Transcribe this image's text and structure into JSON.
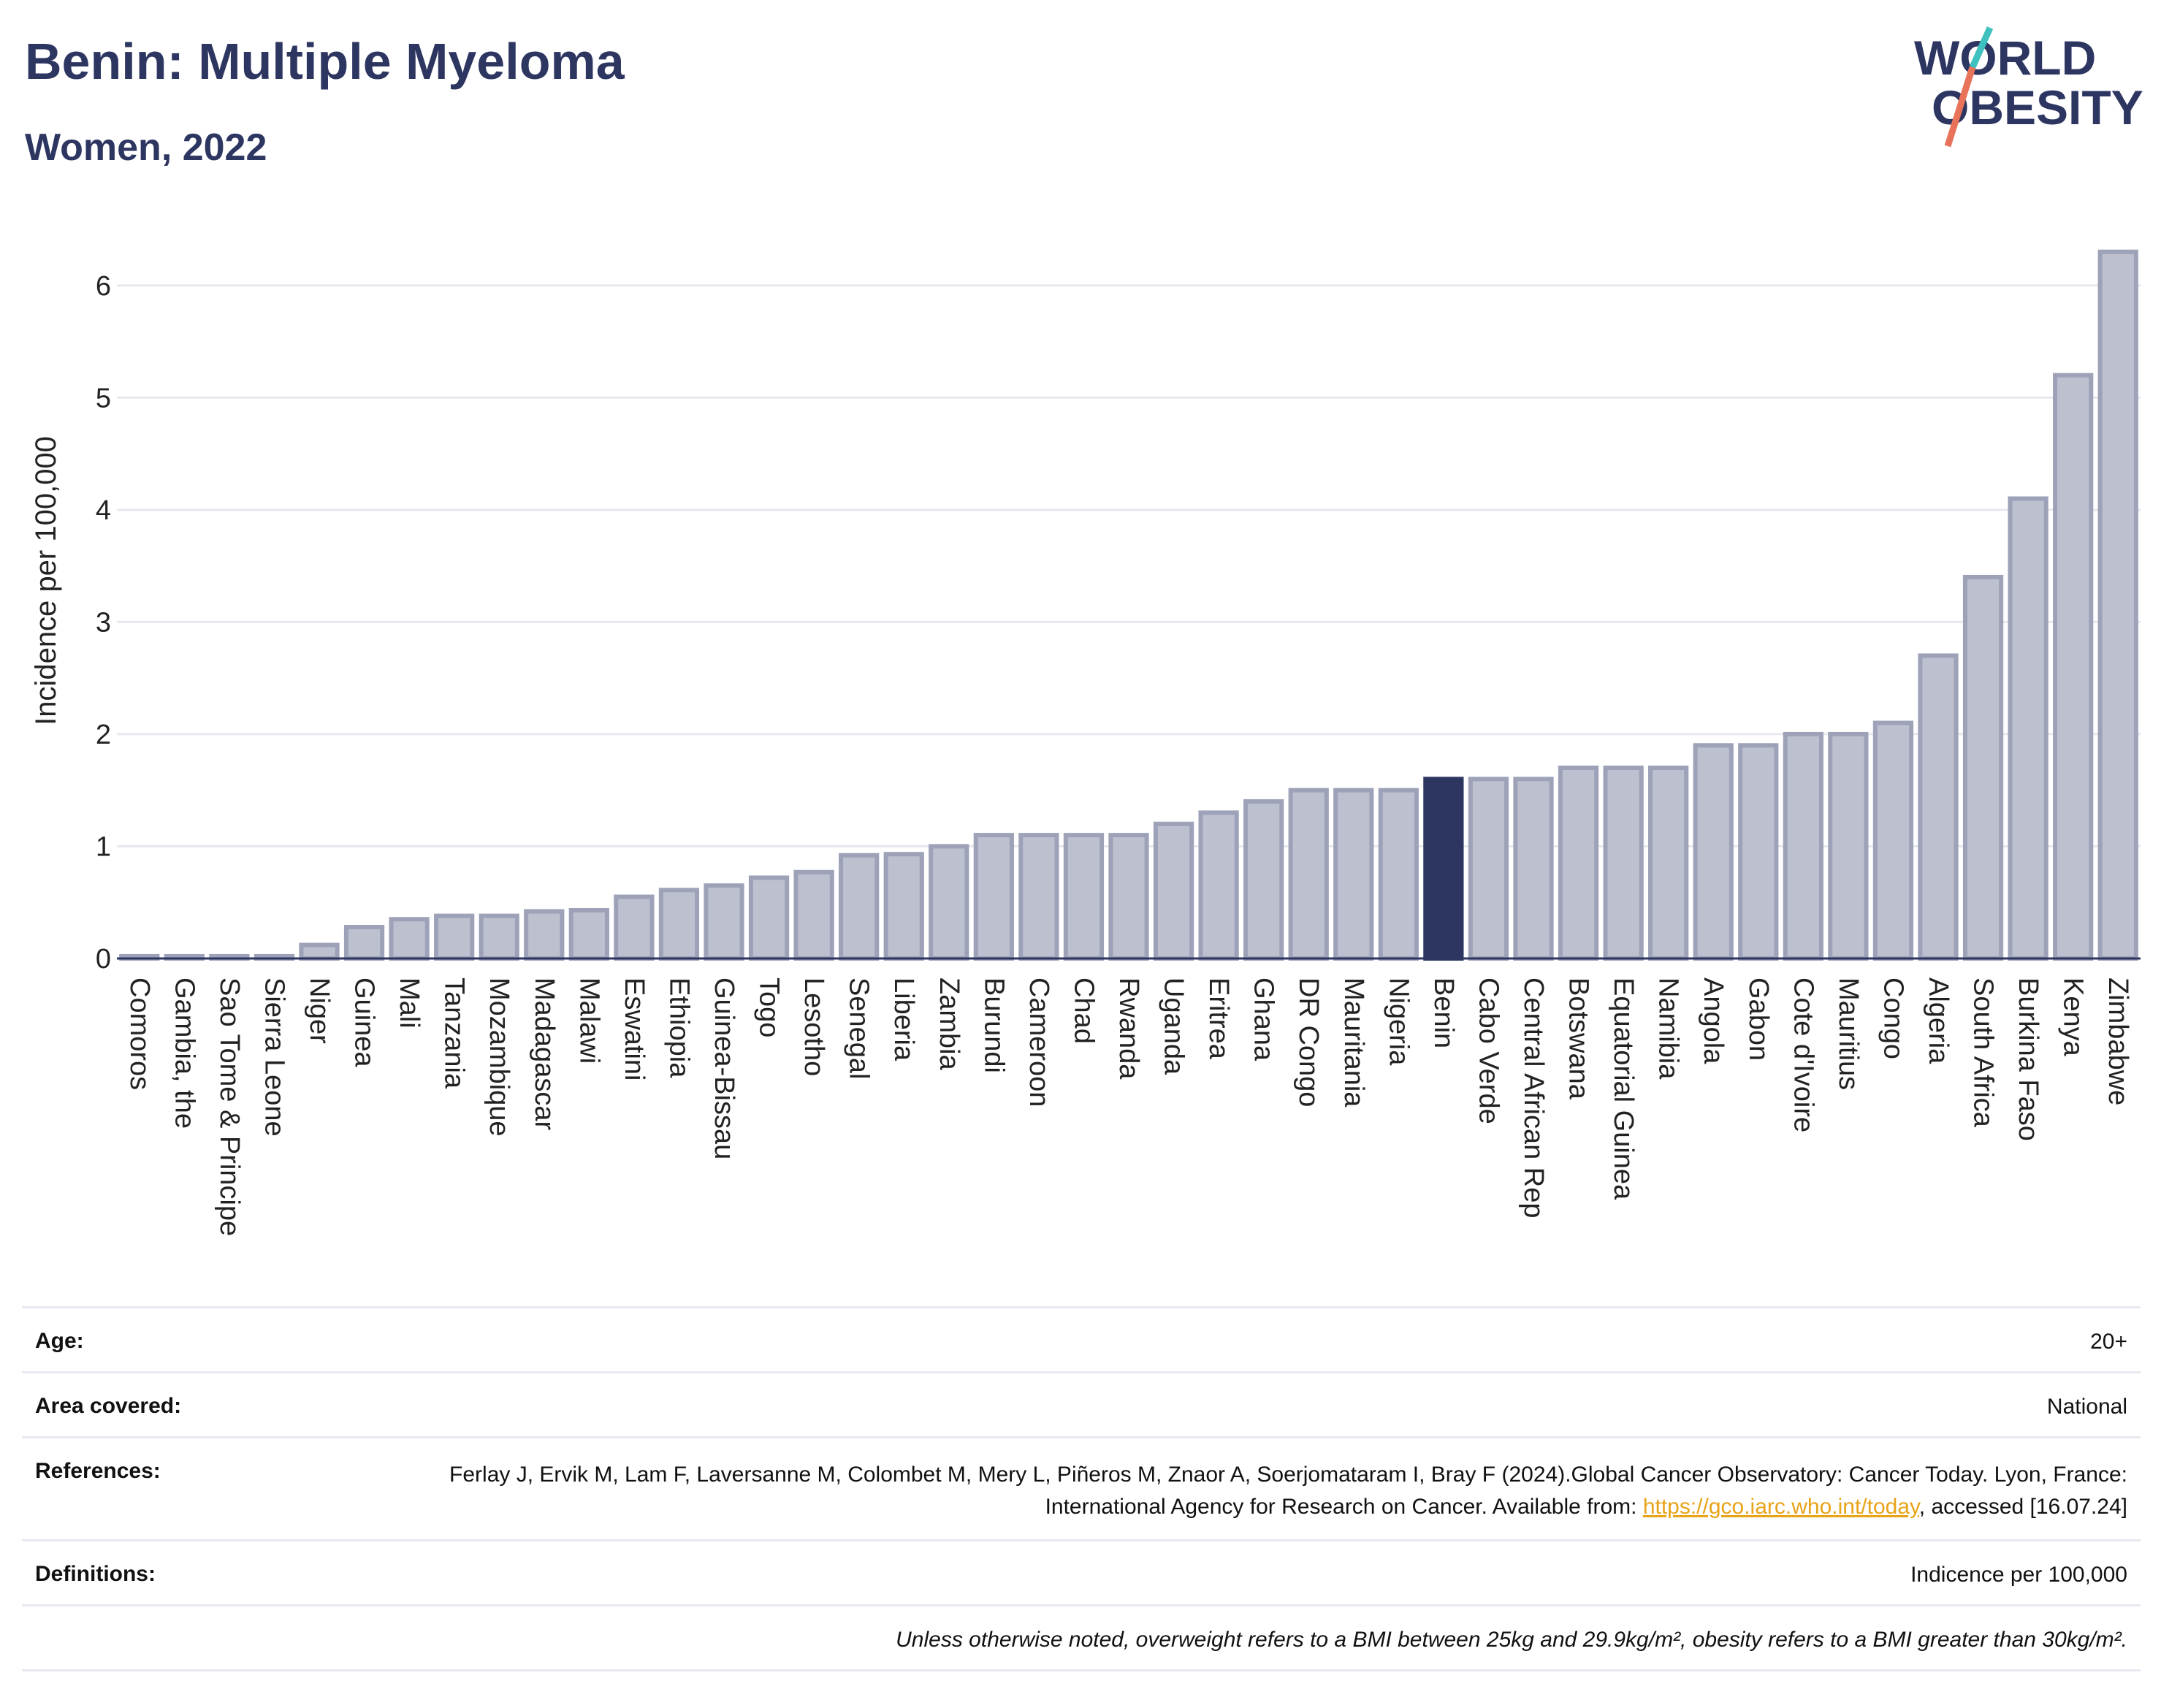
{
  "header": {
    "title": "Benin: Multiple Myeloma",
    "subtitle": "Women, 2022"
  },
  "logo": {
    "line1": "WORLD",
    "line2": "OBESITY",
    "colors": {
      "text": "#2d3561",
      "slash_teal": "#3fc1c0",
      "slash_coral": "#e8735a"
    }
  },
  "colors": {
    "bar": "#bcc0cf",
    "bar_border": "#9da2b8",
    "highlight": "#2d3561",
    "axis_text": "#222222",
    "grid": "#e6e8ee"
  },
  "chart_data": {
    "type": "bar",
    "ylabel": "Incidence per 100,000",
    "xlabel": "",
    "ylim": [
      0,
      6.5
    ],
    "yticks": [
      0,
      1,
      2,
      3,
      4,
      5,
      6
    ],
    "grid": true,
    "highlight": "Benin",
    "categories": [
      "Comoros",
      "Gambia, the",
      "Sao Tome & Principe",
      "Sierra Leone",
      "Niger",
      "Guinea",
      "Mali",
      "Tanzania",
      "Mozambique",
      "Madagascar",
      "Malawi",
      "Eswatini",
      "Ethiopia",
      "Guinea-Bissau",
      "Togo",
      "Lesotho",
      "Senegal",
      "Liberia",
      "Zambia",
      "Burundi",
      "Cameroon",
      "Chad",
      "Rwanda",
      "Uganda",
      "Eritrea",
      "Ghana",
      "DR Congo",
      "Mauritania",
      "Nigeria",
      "Benin",
      "Cabo Verde",
      "Central African Rep",
      "Botswana",
      "Equatorial Guinea",
      "Namibia",
      "Angola",
      "Gabon",
      "Cote d'Ivoire",
      "Mauritius",
      "Congo",
      "Algeria",
      "South Africa",
      "Burkina Faso",
      "Kenya",
      "Zimbabwe"
    ],
    "values": [
      0.02,
      0.02,
      0.02,
      0.02,
      0.12,
      0.28,
      0.35,
      0.38,
      0.38,
      0.42,
      0.43,
      0.55,
      0.61,
      0.65,
      0.72,
      0.77,
      0.92,
      0.93,
      1.0,
      1.1,
      1.1,
      1.1,
      1.1,
      1.2,
      1.3,
      1.4,
      1.5,
      1.5,
      1.5,
      1.6,
      1.6,
      1.6,
      1.7,
      1.7,
      1.7,
      1.9,
      1.9,
      2.0,
      2.0,
      2.1,
      2.7,
      3.4,
      4.1,
      5.2,
      6.3
    ]
  },
  "meta": {
    "age_label": "Age:",
    "age_value": "20+",
    "area_label": "Area covered:",
    "area_value": "National",
    "references_label": "References:",
    "references_text_1": "Ferlay J, Ervik M, Lam F, Laversanne M, Colombet M, Mery L, Piñeros M, Znaor A, Soerjomataram I, Bray F (2024).Global Cancer Observatory: Cancer Today. Lyon, France: International Agency for Research on Cancer. Available from: ",
    "references_link": "https://gco.iarc.who.int/today",
    "references_text_2": ", accessed [16.07.24]",
    "definitions_label": "Definitions:",
    "definitions_value": "Indicence per 100,000",
    "note": "Unless otherwise noted, overweight refers to a BMI between 25kg and 29.9kg/m², obesity refers to a BMI greater than 30kg/m²."
  }
}
